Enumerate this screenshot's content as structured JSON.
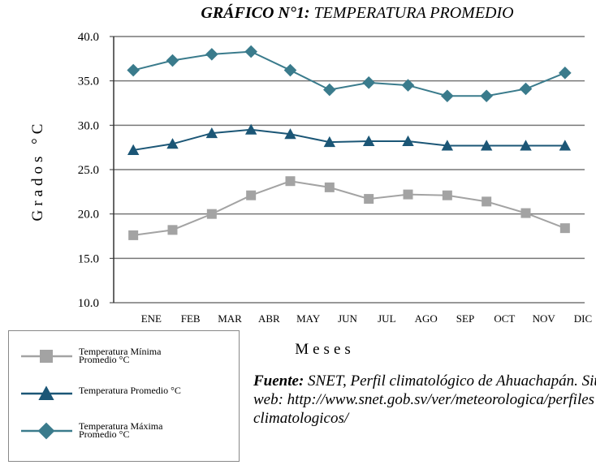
{
  "chart_data": {
    "type": "line",
    "title_bold": "GRÁFICO N°1:",
    "title": "TEMPERATURA PROMEDIO",
    "ylabel": "Grados °C",
    "xlabel": "Meses",
    "categories": [
      "ENE",
      "FEB",
      "MAR",
      "ABR",
      "MAY",
      "JUN",
      "JUL",
      "AGO",
      "SEP",
      "OCT",
      "NOV",
      "DIC"
    ],
    "series": [
      {
        "name": "Temperatura Mínima Promedio °C",
        "color": "#a3a3a3",
        "marker": "square",
        "values": [
          17.6,
          18.2,
          20.0,
          22.1,
          23.7,
          23.0,
          21.7,
          22.2,
          22.1,
          21.4,
          20.1,
          18.4
        ]
      },
      {
        "name": "Temperatura Promedio °C",
        "color": "#1b5676",
        "marker": "triangle",
        "values": [
          27.2,
          27.9,
          29.1,
          29.5,
          29.0,
          28.1,
          28.2,
          28.2,
          27.7,
          27.7,
          27.7,
          27.7
        ]
      },
      {
        "name": "Temperatura  Máxima Promedio °C",
        "color": "#3a7b8c",
        "marker": "diamond",
        "values": [
          36.2,
          37.3,
          38.0,
          38.3,
          36.2,
          34.0,
          34.8,
          34.5,
          33.3,
          33.3,
          34.1,
          35.9
        ]
      }
    ],
    "ylim": [
      10,
      40
    ],
    "yticks": [
      {
        "value": 10,
        "label": "10.0"
      },
      {
        "value": 15,
        "label": "15.0"
      },
      {
        "value": 20,
        "label": "20.0"
      },
      {
        "value": 25,
        "label": "25.0"
      },
      {
        "value": 30,
        "label": "30.0"
      },
      {
        "value": 35,
        "label": "35.0"
      },
      {
        "value": 40,
        "label": "40.0"
      }
    ],
    "grid": true,
    "source_label": "Fuente:",
    "source": "SNET, Perfil climatológico de Ahuachapán. Sitio web: http://www.snet.gob.sv/ver/meteorologica/perfiles+climatologicos/"
  }
}
